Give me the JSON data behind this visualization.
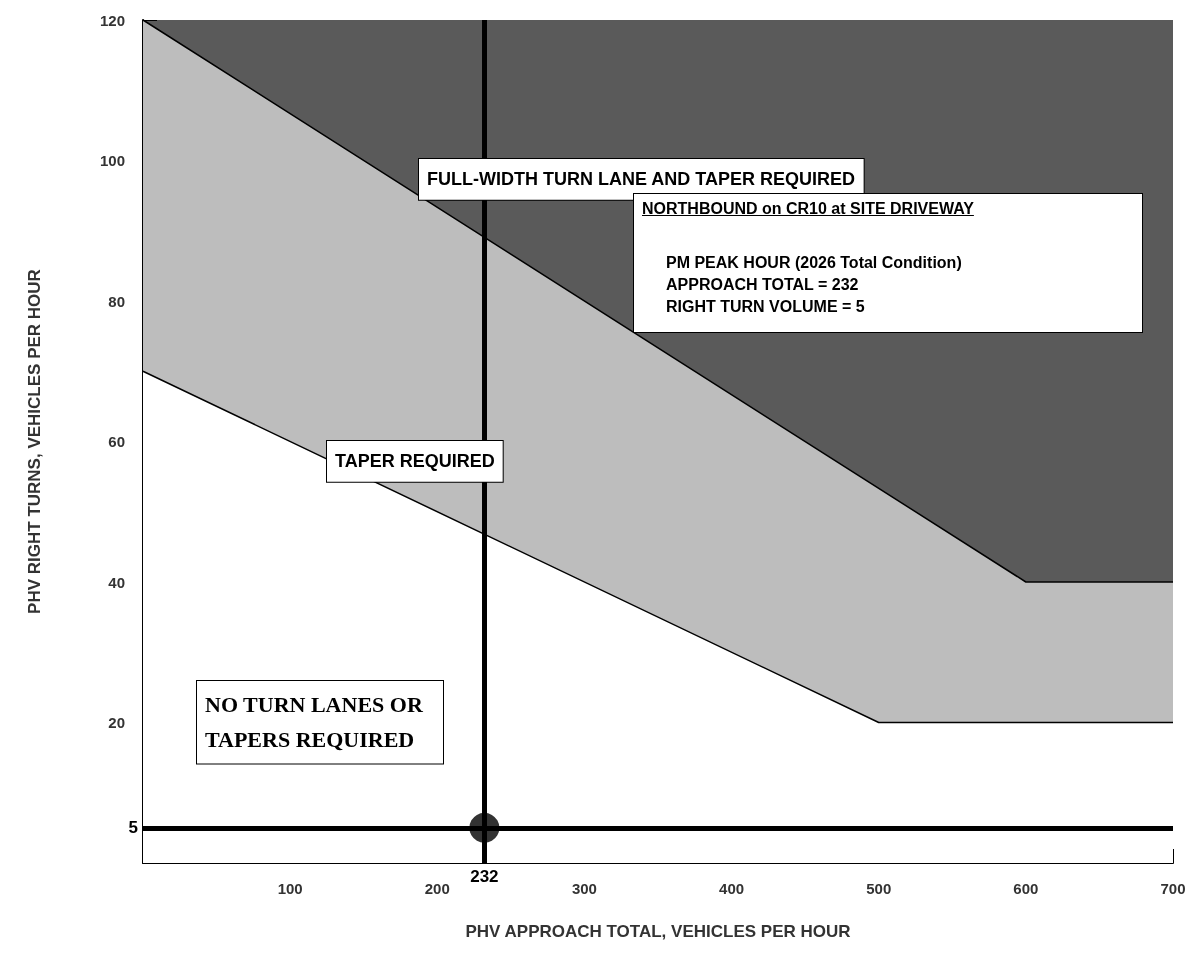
{
  "chart_data": {
    "type": "area",
    "title": "NORTHBOUND on CR10 at SITE DRIVEWAY",
    "xlabel": "PHV APPROACH TOTAL, VEHICLES PER HOUR",
    "ylabel": "PHV RIGHT TURNS, VEHICLES PER HOUR",
    "xlim": [
      0,
      700
    ],
    "ylim": [
      0,
      120
    ],
    "xticks": [
      100,
      200,
      300,
      400,
      500,
      600,
      700
    ],
    "yticks": [
      20,
      40,
      60,
      80,
      100,
      120
    ],
    "marker": "none",
    "series": [
      {
        "color": "#bdbdbd",
        "x": [
          0,
          600,
          700
        ],
        "values": [
          120,
          40,
          40
        ]
      },
      {
        "color": "#ffffff",
        "x": [
          0,
          500,
          700
        ],
        "values": [
          70,
          20,
          20
        ]
      },
      {
        "type": "scatter",
        "color": "#000000",
        "marker": "circle",
        "x": [
          232
        ],
        "values": [
          5
        ]
      }
    ],
    "ref_lines": [
      {
        "axis": "x",
        "value": 232,
        "label": "232",
        "color": "#000000"
      },
      {
        "axis": "y",
        "value": 5,
        "label": "5",
        "color": "#000000"
      }
    ],
    "annotations": [
      "FULL-WIDTH TURN LANE AND TAPER REQUIRED",
      "TAPER REQUIRED",
      "NO TURN LANES OR TAPERS REQUIRED",
      "PM PEAK HOUR (2026 Total Condition)",
      "APPROACH TOTAL = 232",
      "RIGHT TURN VOLUME = 5"
    ]
  }
}
